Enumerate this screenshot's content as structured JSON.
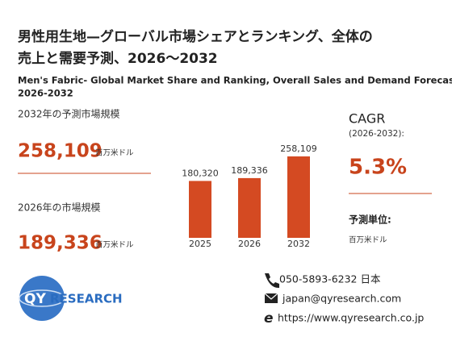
{
  "header": {
    "title_line1": "男性用生地—グローバル市場シェアとランキング、全体の",
    "title_line2": "売上と需要予測、2026～2032",
    "subtitle_line1": "Men's Fabric- Global Market Share and Ranking, Overall Sales and Demand Forecast",
    "subtitle_line2": "2026-2032"
  },
  "stats": {
    "forecast_label": "2032年の予測市場規模",
    "forecast_value": "258,109",
    "forecast_unit": "百万米ドル",
    "current_label": "2026年の市場規模",
    "current_value": "189,336",
    "current_unit": "百万米ドル",
    "cagr_label": "CAGR",
    "cagr_period": "(2026-2032):",
    "cagr_value": "5.3%",
    "unit_label": "予測単位:",
    "unit_value": "百万米ドル"
  },
  "chart_data": {
    "type": "bar",
    "categories": [
      "2025",
      "2026",
      "2032"
    ],
    "values": [
      180320,
      189336,
      258109
    ],
    "value_labels": [
      "180,320",
      "189,336",
      "258,109"
    ],
    "color": "#d44a22"
  },
  "logo": {
    "part1": "QY",
    "part2": "RESEARCH"
  },
  "contact": {
    "phone": "050-5893-6232 日本",
    "email": "japan@qyresearch.com",
    "website": "https://www.qyresearch.co.jp"
  }
}
